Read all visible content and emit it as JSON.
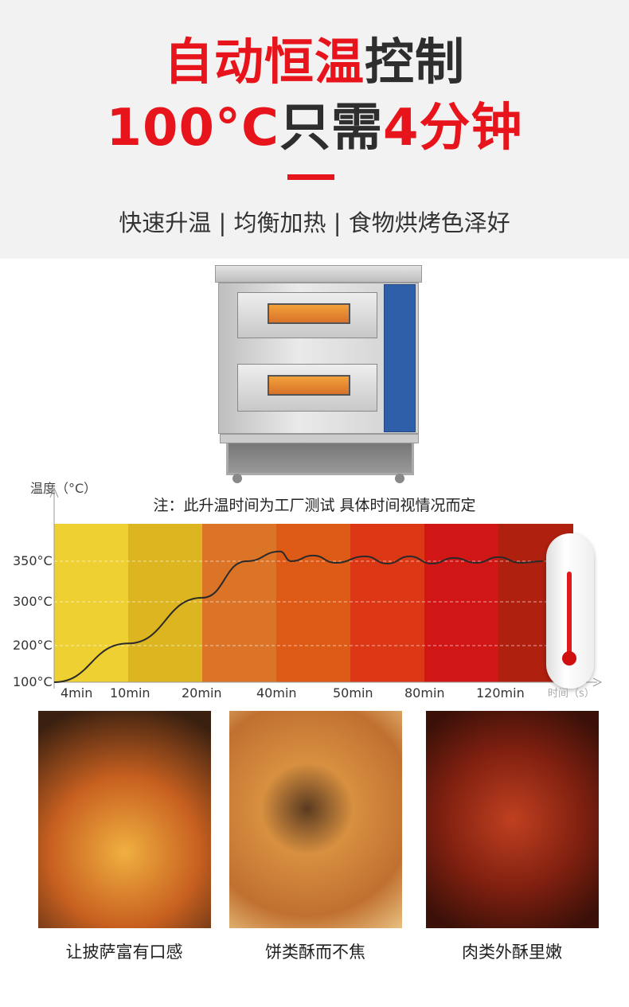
{
  "headline": {
    "line1_red": "自动恒温",
    "line1_dark": "控制",
    "line2_red_a": "100°C",
    "line2_dark": "只需",
    "line2_red_b": "4分钟",
    "subtitle": "快速升温 | 均衡加热 | 食物烘烤色泽好"
  },
  "colors": {
    "accent": "#e8141b",
    "text": "#2e2e2e",
    "header_bg": "#f2f2f2"
  },
  "product": {
    "name_icon": "double-deck-oven-image"
  },
  "chart_data": {
    "type": "line",
    "title": "",
    "note": "注：此升温时间为工厂测试  具体时间视情况而定",
    "ylabel": "温度（°C）",
    "xlabel": "时间（s）",
    "y_ticks": [
      "100°C",
      "200°C",
      "300°C",
      "350°C"
    ],
    "y_tick_values": [
      100,
      200,
      300,
      350
    ],
    "categories": [
      "4min",
      "10min",
      "20min",
      "40min",
      "50min",
      "80min",
      "120min"
    ],
    "band_colors": [
      "#efd032",
      "#ddb521",
      "#dc7427",
      "#de5a17",
      "#dc3816",
      "#d11616",
      "#b0200f"
    ],
    "grid": "dashed horizontal",
    "series": [
      {
        "x": [
          0,
          1,
          2,
          2.6,
          3.05,
          3.2,
          3.5,
          3.8,
          4.2,
          4.5,
          4.8,
          5.1,
          5.4,
          5.7,
          6.0,
          6.3,
          6.6
        ],
        "y": [
          100,
          205,
          305,
          350,
          362,
          350,
          357,
          348,
          356,
          347,
          356,
          347,
          354,
          348,
          355,
          348,
          350
        ]
      }
    ]
  },
  "foods": [
    {
      "caption": "让披萨富有口感",
      "icon": "pizza-photo"
    },
    {
      "caption": "饼类酥而不焦",
      "icon": "pastry-photo"
    },
    {
      "caption": "肉类外酥里嫩",
      "icon": "chicken-wings-photo"
    }
  ]
}
